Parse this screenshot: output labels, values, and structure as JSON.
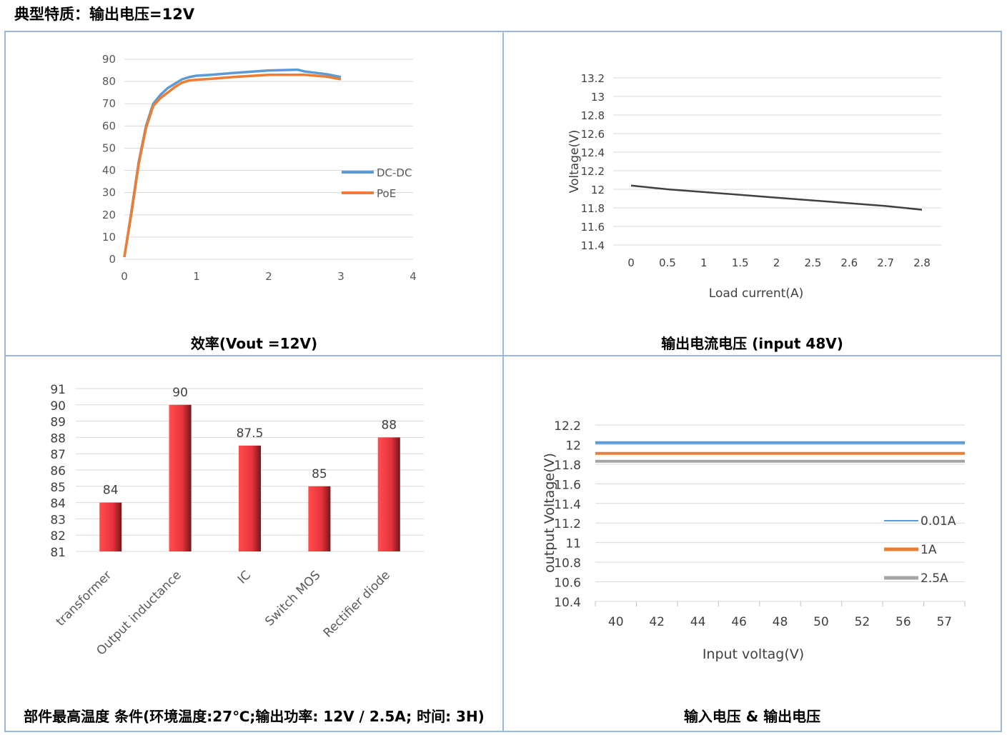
{
  "page_title": "典型特质：输出电压=12V",
  "captions": {
    "c1": "效率(Vout =12V)",
    "c2": "输出电流电压  (input 48V)",
    "c3": "部件最高温度 条件(环境温度:27℃;输出功率: 12V / 2.5A;  时间: 3H)",
    "c4": "输入电压  &  输出电压"
  },
  "chart_data": [
    {
      "type": "line",
      "title": "效率(Vout =12V)",
      "xlim": [
        0,
        4
      ],
      "ylim": [
        0,
        90
      ],
      "xticks": [
        "0",
        "1",
        "2",
        "3",
        "4"
      ],
      "yticks": [
        "0",
        "10",
        "20",
        "30",
        "40",
        "50",
        "60",
        "70",
        "80",
        "90"
      ],
      "legend_position": "right",
      "series": [
        {
          "name": "DC-DC",
          "color": "#5b9bd5",
          "points": [
            [
              0,
              1
            ],
            [
              0.1,
              22
            ],
            [
              0.2,
              44
            ],
            [
              0.3,
              60
            ],
            [
              0.4,
              70
            ],
            [
              0.5,
              74
            ],
            [
              0.6,
              77
            ],
            [
              0.7,
              79
            ],
            [
              0.8,
              81
            ],
            [
              0.9,
              82
            ],
            [
              1.0,
              82.6
            ],
            [
              1.2,
              83
            ],
            [
              1.5,
              83.8
            ],
            [
              2.0,
              85
            ],
            [
              2.4,
              85.3
            ],
            [
              2.5,
              84.5
            ],
            [
              2.8,
              83.3
            ],
            [
              3.0,
              82
            ]
          ]
        },
        {
          "name": "PoE",
          "color": "#ed7d31",
          "points": [
            [
              0,
              1
            ],
            [
              0.1,
              21
            ],
            [
              0.2,
              43
            ],
            [
              0.3,
              59
            ],
            [
              0.4,
              69
            ],
            [
              0.5,
              72.5
            ],
            [
              0.6,
              75
            ],
            [
              0.7,
              77.5
            ],
            [
              0.8,
              79.5
            ],
            [
              0.9,
              80.5
            ],
            [
              1.0,
              80.8
            ],
            [
              1.2,
              81.2
            ],
            [
              1.5,
              82
            ],
            [
              2.0,
              83
            ],
            [
              2.5,
              83
            ],
            [
              2.8,
              82.2
            ],
            [
              3.0,
              81
            ]
          ]
        }
      ]
    },
    {
      "type": "line",
      "title": "输出电流电压  (input 48V)",
      "xlabel": "Load current(A)",
      "ylabel": "Voltage(V)",
      "categories": [
        "0",
        "0.5",
        "1",
        "1.5",
        "2",
        "2.5",
        "2.6",
        "2.7",
        "2.8"
      ],
      "ylim": [
        11.4,
        13.2
      ],
      "yticks": [
        "11.4",
        "11.6",
        "11.8",
        "12",
        "12.2",
        "12.4",
        "12.6",
        "12.8",
        "13",
        "13.2"
      ],
      "series": [
        {
          "color": "#404040",
          "values": [
            12.04,
            12.0,
            11.97,
            11.94,
            11.91,
            11.88,
            11.85,
            11.82,
            11.78
          ]
        }
      ]
    },
    {
      "type": "bar",
      "title": "部件最高温度",
      "categories": [
        "transformer",
        "Output inductance",
        "IC",
        "Switch MOS",
        "Rectifier diode"
      ],
      "values": [
        84,
        90,
        87.5,
        85,
        88
      ],
      "labels": [
        "84",
        "90",
        "87.5",
        "85",
        "88"
      ],
      "ylim": [
        81,
        91
      ],
      "yticks": [
        "81",
        "82",
        "83",
        "84",
        "85",
        "86",
        "87",
        "88",
        "89",
        "90",
        "91"
      ],
      "bar_color": "#e8323c"
    },
    {
      "type": "line",
      "title": "输入电压  &  输出电压",
      "xlabel": "Input voltag(V)",
      "ylabel": "output Voltage(V)",
      "categories": [
        "40",
        "42",
        "44",
        "46",
        "48",
        "50",
        "52",
        "56",
        "57"
      ],
      "ylim": [
        10.4,
        12.2
      ],
      "yticks": [
        "10.4",
        "10.6",
        "10.8",
        "11",
        "11.2",
        "11.4",
        "11.6",
        "11.8",
        "12",
        "12.2"
      ],
      "legend_position": "right",
      "series": [
        {
          "name": "0.01A",
          "color": "#5b9bd5",
          "values": [
            12.02,
            12.02,
            12.02,
            12.02,
            12.02,
            12.02,
            12.02,
            12.02,
            12.02
          ]
        },
        {
          "name": "1A",
          "color": "#ed7d31",
          "values": [
            11.91,
            11.91,
            11.91,
            11.91,
            11.91,
            11.91,
            11.91,
            11.91,
            11.91
          ]
        },
        {
          "name": "2.5A",
          "color": "#a5a5a5",
          "values": [
            11.83,
            11.83,
            11.83,
            11.83,
            11.83,
            11.83,
            11.83,
            11.83,
            11.83
          ]
        }
      ]
    }
  ]
}
